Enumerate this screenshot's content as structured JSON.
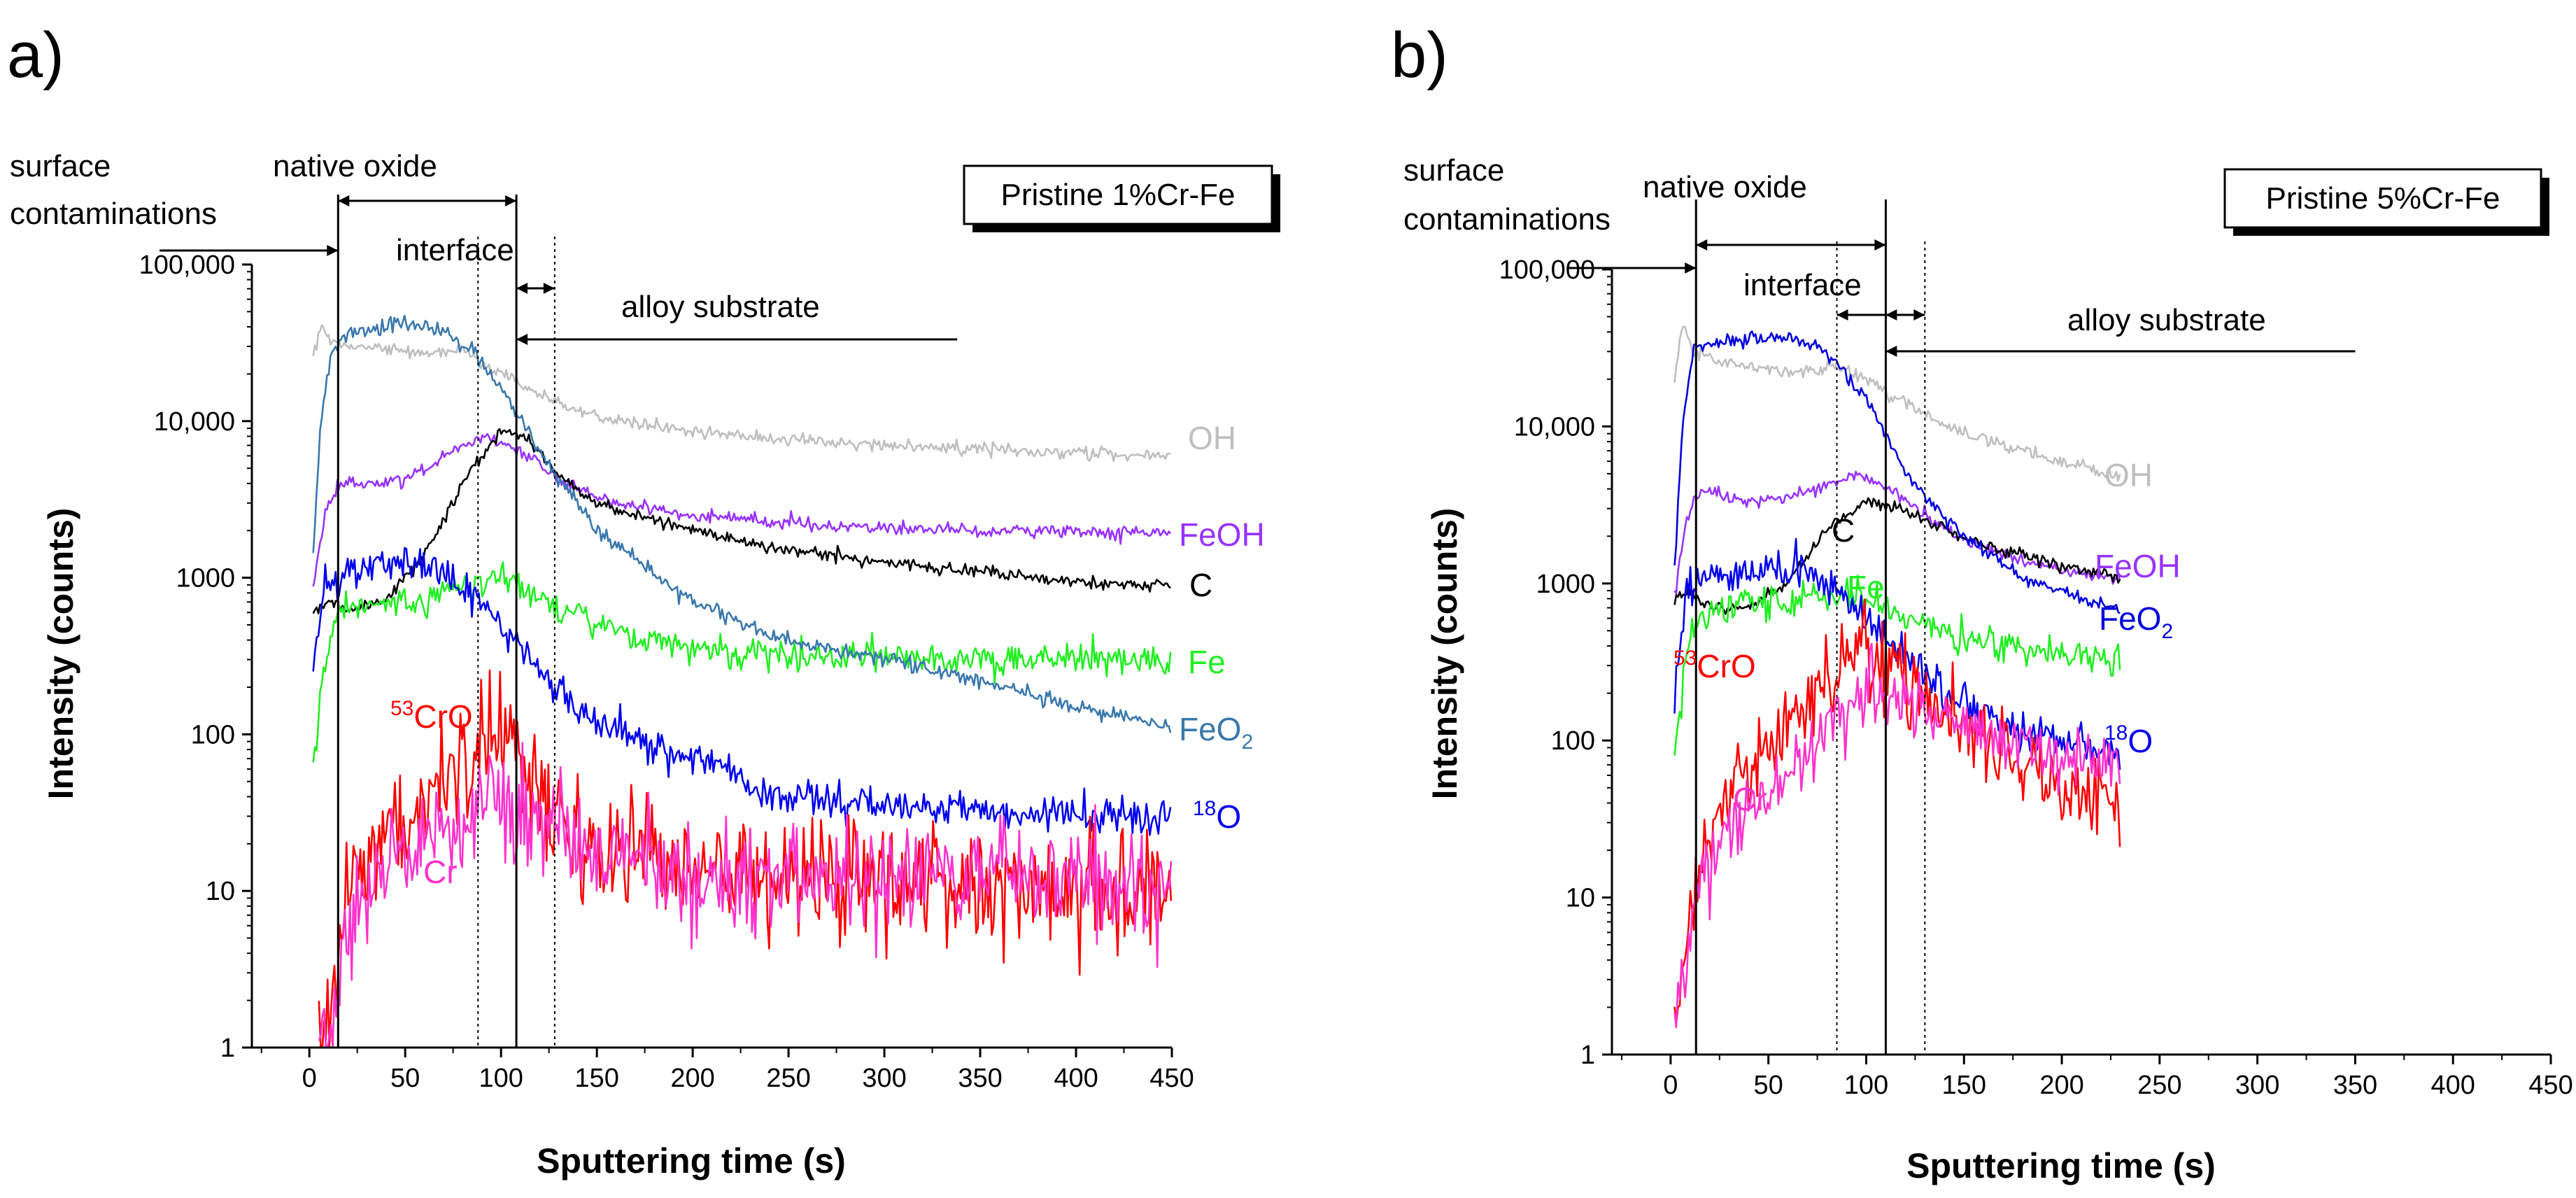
{
  "chart_data": [
    {
      "panel": "a)",
      "type": "line",
      "sample": "Pristine 1%Cr-Fe",
      "xlabel": "Sputtering time (s)",
      "ylabel": "Intensity (counts)",
      "xlim": [
        -30,
        450
      ],
      "ylim": [
        1,
        100000
      ],
      "yscale": "log",
      "xticks": [
        0,
        50,
        100,
        150,
        200,
        250,
        300,
        350,
        400,
        450
      ],
      "yticks": [
        1,
        10,
        100,
        1000,
        10000,
        100000
      ],
      "yticklabels": [
        "1",
        "10",
        "100",
        "1000",
        "10,000",
        "100,000"
      ],
      "regions": {
        "surface": "surface\ncontaminations",
        "native_oxide": "native oxide",
        "interface": "interface",
        "alloy": "alloy substrate"
      },
      "boundaries": {
        "surface_end": 15,
        "oxide_end": 108,
        "interface_start": 88,
        "interface_end": 128,
        "alloy_arrow_end": 338
      },
      "series": [
        {
          "name": "OH",
          "label": "OH",
          "color": "#bfbfbf",
          "noise": 0.02,
          "points": [
            [
              2,
              25000
            ],
            [
              6,
              40000
            ],
            [
              12,
              32000
            ],
            [
              30,
              30000
            ],
            [
              60,
              27000
            ],
            [
              80,
              28000
            ],
            [
              100,
              20000
            ],
            [
              130,
              13000
            ],
            [
              160,
              10000
            ],
            [
              200,
              8500
            ],
            [
              250,
              7600
            ],
            [
              300,
              7000
            ],
            [
              350,
              6700
            ],
            [
              400,
              6300
            ],
            [
              450,
              6000
            ]
          ]
        },
        {
          "name": "FeOH",
          "label": "FeOH",
          "color": "#9933ff",
          "noise": 0.02,
          "points": [
            [
              2,
              900
            ],
            [
              8,
              2500
            ],
            [
              15,
              4000
            ],
            [
              30,
              4000
            ],
            [
              50,
              4200
            ],
            [
              70,
              5800
            ],
            [
              92,
              8000
            ],
            [
              110,
              6500
            ],
            [
              130,
              4200
            ],
            [
              160,
              3000
            ],
            [
              200,
              2500
            ],
            [
              250,
              2200
            ],
            [
              300,
              2100
            ],
            [
              350,
              2000
            ],
            [
              400,
              1950
            ],
            [
              450,
              1900
            ]
          ]
        },
        {
          "name": "C",
          "label": "C",
          "color": "#000000",
          "noise": 0.02,
          "points": [
            [
              2,
              600
            ],
            [
              10,
              700
            ],
            [
              20,
              620
            ],
            [
              40,
              700
            ],
            [
              60,
              1400
            ],
            [
              80,
              4000
            ],
            [
              100,
              8800
            ],
            [
              112,
              8000
            ],
            [
              130,
              4500
            ],
            [
              150,
              3000
            ],
            [
              200,
              2000
            ],
            [
              250,
              1500
            ],
            [
              300,
              1250
            ],
            [
              350,
              1100
            ],
            [
              400,
              950
            ],
            [
              450,
              880
            ]
          ]
        },
        {
          "name": "Fe",
          "label": "Fe",
          "color": "#22ee22",
          "noise": 0.05,
          "points": [
            [
              2,
              60
            ],
            [
              8,
              300
            ],
            [
              15,
              600
            ],
            [
              30,
              650
            ],
            [
              60,
              700
            ],
            [
              85,
              900
            ],
            [
              100,
              1000
            ],
            [
              120,
              750
            ],
            [
              150,
              500
            ],
            [
              200,
              350
            ],
            [
              250,
              320
            ],
            [
              300,
              310
            ],
            [
              350,
              300
            ],
            [
              400,
              300
            ],
            [
              450,
              300
            ]
          ]
        },
        {
          "name": "FeO2",
          "label": "FeO",
          "sub": "2",
          "color": "#3a78ad",
          "noise": 0.025,
          "points": [
            [
              2,
              1500
            ],
            [
              6,
              10000
            ],
            [
              12,
              30000
            ],
            [
              25,
              38000
            ],
            [
              50,
              42000
            ],
            [
              70,
              38000
            ],
            [
              85,
              28000
            ],
            [
              100,
              16000
            ],
            [
              120,
              6500
            ],
            [
              150,
              2000
            ],
            [
              200,
              700
            ],
            [
              250,
              400
            ],
            [
              300,
              300
            ],
            [
              350,
              220
            ],
            [
              400,
              150
            ],
            [
              450,
              110
            ]
          ]
        },
        {
          "name": "18O",
          "label": "O",
          "sup": "18",
          "color": "#0000ee",
          "noise": 0.06,
          "points": [
            [
              2,
              250
            ],
            [
              8,
              900
            ],
            [
              20,
              1100
            ],
            [
              40,
              1200
            ],
            [
              60,
              1200
            ],
            [
              80,
              900
            ],
            [
              100,
              550
            ],
            [
              120,
              250
            ],
            [
              150,
              120
            ],
            [
              200,
              70
            ],
            [
              250,
              40
            ],
            [
              300,
              35
            ],
            [
              350,
              32
            ],
            [
              400,
              30
            ],
            [
              450,
              28
            ]
          ]
        },
        {
          "name": "53CrO",
          "label": "CrO",
          "sup": "53",
          "color": "#ff0000",
          "noise": 0.2,
          "points": [
            [
              5,
              1.5
            ],
            [
              12,
              1.5
            ],
            [
              18,
              8
            ],
            [
              30,
              15
            ],
            [
              60,
              35
            ],
            [
              80,
              80
            ],
            [
              95,
              110
            ],
            [
              110,
              70
            ],
            [
              130,
              30
            ],
            [
              150,
              20
            ],
            [
              200,
              14
            ],
            [
              250,
              12
            ],
            [
              300,
              11
            ],
            [
              350,
              11
            ],
            [
              400,
              10
            ],
            [
              450,
              10
            ]
          ]
        },
        {
          "name": "Cr",
          "label": "Cr",
          "color": "#ff33cc",
          "noise": 0.17,
          "points": [
            [
              5,
              1.5
            ],
            [
              12,
              1.5
            ],
            [
              18,
              5
            ],
            [
              30,
              9
            ],
            [
              60,
              18
            ],
            [
              85,
              30
            ],
            [
              95,
              40
            ],
            [
              110,
              30
            ],
            [
              130,
              22
            ],
            [
              150,
              16
            ],
            [
              200,
              13
            ],
            [
              250,
              12
            ],
            [
              300,
              12
            ],
            [
              350,
              12
            ],
            [
              400,
              12
            ],
            [
              450,
              12
            ]
          ]
        }
      ]
    },
    {
      "panel": "b)",
      "type": "line",
      "sample": "Pristine 5%Cr-Fe",
      "xlabel": "Sputtering time (s)",
      "ylabel": "Intensity (counts)",
      "xlim": [
        -30,
        450
      ],
      "ylim": [
        1,
        100000
      ],
      "yscale": "log",
      "xticks": [
        0,
        50,
        100,
        150,
        200,
        250,
        300,
        350,
        400,
        450
      ],
      "yticks": [
        1,
        10,
        100,
        1000,
        10000,
        100000
      ],
      "yticklabels": [
        "1",
        "10",
        "100",
        "1000",
        "10,000",
        "100,000"
      ],
      "regions": {
        "surface": "surface\ncontaminations",
        "native_oxide": "native oxide",
        "interface": "interface",
        "alloy": "alloy substrate"
      },
      "boundaries": {
        "surface_end": 13,
        "oxide_end": 110,
        "interface_start": 85,
        "interface_end": 130,
        "alloy_arrow_end": 350
      },
      "series": [
        {
          "name": "OH",
          "label": "OH",
          "color": "#bfbfbf",
          "noise": 0.02,
          "points": [
            [
              2,
              20000
            ],
            [
              6,
              42000
            ],
            [
              12,
              30000
            ],
            [
              30,
              25000
            ],
            [
              60,
              22000
            ],
            [
              85,
              24000
            ],
            [
              100,
              20000
            ],
            [
              120,
              14000
            ],
            [
              150,
              9000
            ],
            [
              200,
              6000
            ],
            [
              230,
              4800
            ]
          ]
        },
        {
          "name": "FeOH",
          "label": "FeOH",
          "color": "#9933ff",
          "noise": 0.02,
          "points": [
            [
              2,
              800
            ],
            [
              8,
              2500
            ],
            [
              15,
              4000
            ],
            [
              30,
              3500
            ],
            [
              50,
              3300
            ],
            [
              70,
              3800
            ],
            [
              95,
              5000
            ],
            [
              115,
              3800
            ],
            [
              140,
              2200
            ],
            [
              170,
              1500
            ],
            [
              200,
              1200
            ],
            [
              230,
              1050
            ]
          ]
        },
        {
          "name": "C",
          "label": "C",
          "color": "#000000",
          "noise": 0.02,
          "points": [
            [
              2,
              800
            ],
            [
              8,
              900
            ],
            [
              20,
              700
            ],
            [
              40,
              700
            ],
            [
              60,
              1000
            ],
            [
              80,
              2200
            ],
            [
              100,
              3300
            ],
            [
              115,
              3100
            ],
            [
              140,
              2200
            ],
            [
              170,
              1600
            ],
            [
              200,
              1300
            ],
            [
              230,
              1100
            ]
          ]
        },
        {
          "name": "Fe",
          "label": "Fe",
          "color": "#22ee22",
          "noise": 0.05,
          "points": [
            [
              2,
              80
            ],
            [
              8,
              400
            ],
            [
              15,
              600
            ],
            [
              30,
              700
            ],
            [
              60,
              800
            ],
            [
              90,
              850
            ],
            [
              110,
              700
            ],
            [
              140,
              500
            ],
            [
              170,
              400
            ],
            [
              200,
              350
            ],
            [
              230,
              330
            ]
          ]
        },
        {
          "name": "FeO2",
          "label": "FeO",
          "sub": "2",
          "color": "#0000dd",
          "noise": 0.02,
          "points": [
            [
              2,
              1200
            ],
            [
              6,
              10000
            ],
            [
              12,
              32000
            ],
            [
              30,
              35000
            ],
            [
              60,
              37000
            ],
            [
              80,
              30000
            ],
            [
              100,
              15000
            ],
            [
              120,
              5000
            ],
            [
              150,
              2000
            ],
            [
              180,
              1100
            ],
            [
              210,
              800
            ],
            [
              230,
              700
            ]
          ]
        },
        {
          "name": "18O",
          "label": "O",
          "sup": "18",
          "color": "#0000ee",
          "noise": 0.06,
          "points": [
            [
              2,
              200
            ],
            [
              8,
              900
            ],
            [
              20,
              1100
            ],
            [
              50,
              1200
            ],
            [
              70,
              1200
            ],
            [
              90,
              800
            ],
            [
              110,
              450
            ],
            [
              140,
              200
            ],
            [
              170,
              130
            ],
            [
              200,
              100
            ],
            [
              230,
              85
            ]
          ]
        },
        {
          "name": "53CrO",
          "label": "CrO",
          "sup": "53",
          "color": "#ff0000",
          "noise": 0.14,
          "points": [
            [
              2,
              1.5
            ],
            [
              6,
              3
            ],
            [
              10,
              8
            ],
            [
              15,
              20
            ],
            [
              30,
              40
            ],
            [
              60,
              120
            ],
            [
              80,
              250
            ],
            [
              95,
              380
            ],
            [
              110,
              300
            ],
            [
              140,
              150
            ],
            [
              170,
              80
            ],
            [
              200,
              50
            ],
            [
              230,
              38
            ]
          ]
        },
        {
          "name": "Cr",
          "label": "Cr",
          "color": "#ff33cc",
          "noise": 0.1,
          "points": [
            [
              2,
              1.5
            ],
            [
              6,
              3
            ],
            [
              10,
              6
            ],
            [
              15,
              12
            ],
            [
              30,
              25
            ],
            [
              60,
              60
            ],
            [
              80,
              120
            ],
            [
              100,
              200
            ],
            [
              120,
              170
            ],
            [
              150,
              120
            ],
            [
              180,
              95
            ],
            [
              200,
              85
            ],
            [
              230,
              75
            ]
          ]
        }
      ]
    }
  ]
}
